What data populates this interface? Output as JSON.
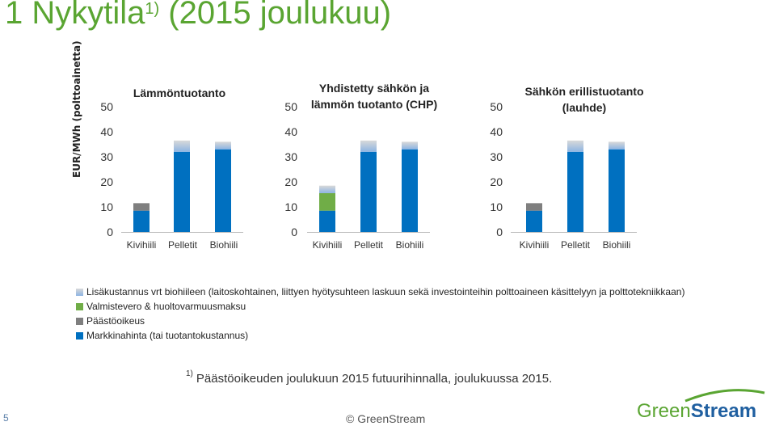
{
  "page": {
    "title_main": "1  Nykytila",
    "title_sup": "1)",
    "title_rest": " (2015 joulukuu)",
    "page_number": "5",
    "copyright": "© GreenStream",
    "logo_text_green": "Green",
    "logo_text_blue": "Stream",
    "footnote_mark": "1)",
    "footnote_text": "Päästöoikeuden joulukuun 2015 futuurihinnalla, joulukuussa 2015."
  },
  "colors": {
    "market": "#0070c0",
    "emission": "#7f7f7f",
    "tax": "#70ad47",
    "extra_top": "#d9d9d9",
    "extra_bottom": "#8db4e2",
    "title": "#5aa532",
    "axis": "#bfbfbf"
  },
  "legend": [
    {
      "label": "Lisäkustannus vrt biohiileen (laitoskohtainen, liittyen hyötysuhteen laskuun sekä investointeihin polttoaineen käsittelyyn ja polttotekniikkaan)",
      "key": "extra"
    },
    {
      "label": "Valmistevero & huoltovarmuusmaksu",
      "key": "tax"
    },
    {
      "label": "Päästöoikeus",
      "key": "emission"
    },
    {
      "label": "Markkinahinta (tai tuotantokustannus)",
      "key": "market"
    }
  ],
  "chart_data": [
    {
      "type": "bar",
      "stacked": true,
      "title": "Lämmöntuotanto",
      "ylabel": "EUR/MWh (polttoainetta)",
      "ylim": [
        0,
        50
      ],
      "yticks": [
        "0",
        "10",
        "20",
        "30",
        "40",
        "50"
      ],
      "categories": [
        "Kivihiili",
        "Pelletit",
        "Biohiili"
      ],
      "series": [
        {
          "name": "Markkinahinta (tai tuotantokustannus)",
          "key": "market",
          "values": [
            8.5,
            32,
            33
          ]
        },
        {
          "name": "Päästöoikeus",
          "key": "emission",
          "values": [
            3,
            0,
            0
          ]
        },
        {
          "name": "Valmistevero & huoltovarmuusmaksu",
          "key": "tax",
          "values": [
            0,
            0,
            0
          ]
        },
        {
          "name": "Lisäkustannus vrt biohiileen (laitoskohtainen, liittyen hyötysuhteen laskuun sekä investointeihin polttoaineen käsittelyyn ja polttotekniikkaan)",
          "key": "extra",
          "values": [
            0,
            4.5,
            3
          ]
        }
      ]
    },
    {
      "type": "bar",
      "stacked": true,
      "title": "Yhdistetty sähkön ja lämmön tuotanto (CHP)",
      "title_lines": [
        "Yhdistetty sähkön ja",
        "lämmön tuotanto (CHP)"
      ],
      "ylim": [
        0,
        50
      ],
      "yticks": [
        "0",
        "10",
        "20",
        "30",
        "40",
        "50"
      ],
      "categories": [
        "Kivihiili",
        "Pelletit",
        "Biohiili"
      ],
      "series": [
        {
          "name": "Markkinahinta (tai tuotantokustannus)",
          "key": "market",
          "values": [
            8.5,
            32,
            33
          ]
        },
        {
          "name": "Päästöoikeus",
          "key": "emission",
          "values": [
            0,
            0,
            0
          ]
        },
        {
          "name": "Valmistevero & huoltovarmuusmaksu",
          "key": "tax",
          "values": [
            7,
            0,
            0
          ]
        },
        {
          "name": "Lisäkustannus vrt biohiileen (laitoskohtainen, liittyen hyötysuhteen laskuun sekä investointeihin polttoaineen käsittelyyn ja polttotekniikkaan)",
          "key": "extra",
          "values": [
            3,
            4.5,
            3
          ]
        }
      ]
    },
    {
      "type": "bar",
      "stacked": true,
      "title": "Sähkön erillistuotanto (lauhde)",
      "title_lines": [
        "Sähkön erillistuotanto",
        "(lauhde)"
      ],
      "ylim": [
        0,
        50
      ],
      "yticks": [
        "0",
        "10",
        "20",
        "30",
        "40",
        "50"
      ],
      "categories": [
        "Kivihiili",
        "Pelletit",
        "Biohiili"
      ],
      "series": [
        {
          "name": "Markkinahinta (tai tuotantokustannus)",
          "key": "market",
          "values": [
            8.5,
            32,
            33
          ]
        },
        {
          "name": "Päästöoikeus",
          "key": "emission",
          "values": [
            3,
            0,
            0
          ]
        },
        {
          "name": "Valmistevero & huoltovarmuusmaksu",
          "key": "tax",
          "values": [
            0,
            0,
            0
          ]
        },
        {
          "name": "Lisäkustannus vrt biohiileen (laitoskohtainen, liittyen hyötysuhteen laskuun sekä investointeihin polttoaineen käsittelyyn ja polttotekniikkaan)",
          "key": "extra",
          "values": [
            0,
            4.5,
            3
          ]
        }
      ]
    }
  ]
}
